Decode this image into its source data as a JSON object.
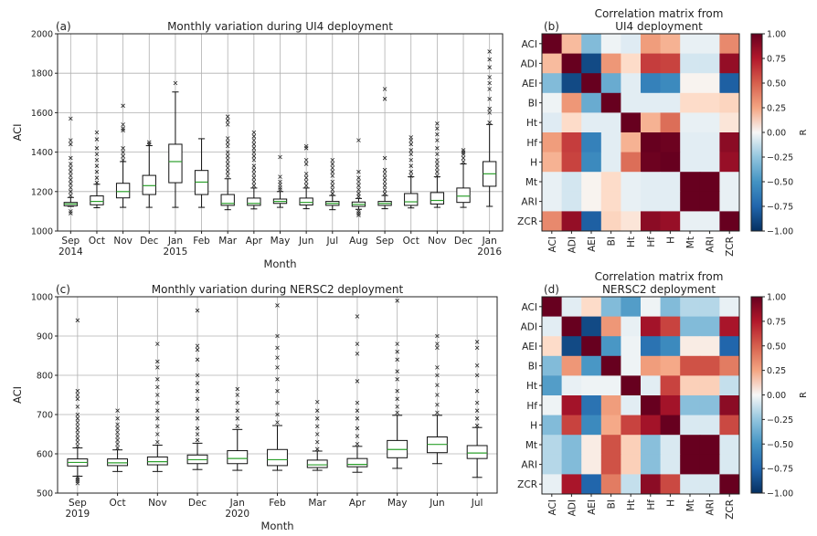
{
  "chart_data": [
    {
      "id": "a",
      "type": "box",
      "panel_label": "(a)",
      "title": "Monthly variation during UI4 deployment",
      "xlabel": "Month",
      "ylabel": "ACI",
      "ylim": [
        1000,
        2000
      ],
      "yticks": [
        1000,
        1200,
        1400,
        1600,
        1800,
        2000
      ],
      "grid": true,
      "categories": [
        "Sep\n2014",
        "Oct",
        "Nov",
        "Dec",
        "Jan\n2015",
        "Feb",
        "Mar",
        "Apr",
        "May",
        "Jun",
        "Jul",
        "Aug",
        "Sep",
        "Oct",
        "Nov",
        "Dec",
        "Jan\n2016"
      ],
      "boxes": [
        {
          "whislo": 1125,
          "q1": 1128,
          "med": 1137,
          "q3": 1145,
          "whishi": 1170,
          "fliers_hi": [
            1180,
            1200,
            1220,
            1240,
            1260,
            1280,
            1300,
            1320,
            1340,
            1370,
            1440,
            1460,
            1570
          ],
          "fliers_lo": [
            1090,
            1100
          ]
        },
        {
          "whislo": 1118,
          "q1": 1133,
          "med": 1150,
          "q3": 1178,
          "whishi": 1237,
          "fliers_hi": [
            1245,
            1270,
            1300,
            1330,
            1360,
            1390,
            1420,
            1465,
            1500
          ],
          "fliers_lo": []
        },
        {
          "whislo": 1120,
          "q1": 1168,
          "med": 1200,
          "q3": 1242,
          "whishi": 1352,
          "fliers_hi": [
            1360,
            1380,
            1400,
            1420,
            1510,
            1520,
            1540,
            1635
          ],
          "fliers_lo": []
        },
        {
          "whislo": 1120,
          "q1": 1185,
          "med": 1230,
          "q3": 1282,
          "whishi": 1433,
          "fliers_hi": [
            1440,
            1450
          ],
          "fliers_lo": []
        },
        {
          "whislo": 1120,
          "q1": 1245,
          "med": 1352,
          "q3": 1440,
          "whishi": 1705,
          "fliers_hi": [
            1750
          ],
          "fliers_lo": []
        },
        {
          "whislo": 1120,
          "q1": 1185,
          "med": 1248,
          "q3": 1307,
          "whishi": 1468,
          "fliers_hi": [],
          "fliers_lo": []
        },
        {
          "whislo": 1108,
          "q1": 1130,
          "med": 1140,
          "q3": 1185,
          "whishi": 1265,
          "fliers_hi": [
            1280,
            1300,
            1320,
            1340,
            1360,
            1380,
            1400,
            1430,
            1450,
            1470,
            1540,
            1560,
            1580
          ],
          "fliers_lo": []
        },
        {
          "whislo": 1112,
          "q1": 1130,
          "med": 1140,
          "q3": 1167,
          "whishi": 1218,
          "fliers_hi": [
            1230,
            1250,
            1270,
            1290,
            1310,
            1330,
            1360,
            1380,
            1400,
            1420,
            1440,
            1460,
            1480,
            1500
          ],
          "fliers_lo": []
        },
        {
          "whislo": 1120,
          "q1": 1140,
          "med": 1150,
          "q3": 1162,
          "whishi": 1200,
          "fliers_hi": [
            1210,
            1220,
            1235,
            1250,
            1275,
            1375
          ],
          "fliers_lo": []
        },
        {
          "whislo": 1113,
          "q1": 1132,
          "med": 1145,
          "q3": 1167,
          "whishi": 1218,
          "fliers_hi": [
            1230,
            1250,
            1270,
            1290,
            1340,
            1360,
            1420,
            1430
          ],
          "fliers_lo": []
        },
        {
          "whislo": 1108,
          "q1": 1130,
          "med": 1140,
          "q3": 1150,
          "whishi": 1180,
          "fliers_hi": [
            1190,
            1210,
            1230,
            1250,
            1280,
            1300,
            1320,
            1340,
            1360
          ],
          "fliers_lo": []
        },
        {
          "whislo": 1110,
          "q1": 1125,
          "med": 1135,
          "q3": 1147,
          "whishi": 1165,
          "fliers_hi": [
            1175,
            1190,
            1210,
            1230,
            1250,
            1270,
            1300,
            1460
          ],
          "fliers_lo": [
            1080,
            1090,
            1100
          ]
        },
        {
          "whislo": 1113,
          "q1": 1130,
          "med": 1140,
          "q3": 1150,
          "whishi": 1180,
          "fliers_hi": [
            1190,
            1210,
            1230,
            1250,
            1270,
            1290,
            1310,
            1370,
            1670,
            1720
          ],
          "fliers_lo": []
        },
        {
          "whislo": 1117,
          "q1": 1130,
          "med": 1148,
          "q3": 1190,
          "whishi": 1275,
          "fliers_hi": [
            1280,
            1300,
            1330,
            1360,
            1390,
            1410,
            1440,
            1460,
            1475
          ],
          "fliers_lo": []
        },
        {
          "whislo": 1120,
          "q1": 1137,
          "med": 1155,
          "q3": 1195,
          "whishi": 1275,
          "fliers_hi": [
            1280,
            1300,
            1320,
            1340,
            1360,
            1390,
            1420,
            1460,
            1490,
            1520,
            1545
          ],
          "fliers_lo": []
        },
        {
          "whislo": 1120,
          "q1": 1145,
          "med": 1177,
          "q3": 1218,
          "whishi": 1340,
          "fliers_hi": [
            1350,
            1370,
            1390,
            1400,
            1410
          ],
          "fliers_lo": []
        },
        {
          "whislo": 1125,
          "q1": 1227,
          "med": 1290,
          "q3": 1352,
          "whishi": 1540,
          "fliers_hi": [
            1550,
            1600,
            1620,
            1670,
            1720,
            1750,
            1780,
            1830,
            1870,
            1910
          ],
          "fliers_lo": []
        }
      ]
    },
    {
      "id": "b",
      "type": "heatmap",
      "panel_label": "(b)",
      "title": "Correlation matrix from\nUI4 deployment",
      "labels": [
        "ACI",
        "ADI",
        "AEI",
        "BI",
        "Ht",
        "Hf",
        "H",
        "Mt",
        "ARI",
        "ZCR"
      ],
      "colorbar_label": "R",
      "colorbar_ticks": [
        "1.00",
        "0.75",
        "0.50",
        "0.25",
        "0.00",
        "−0.25",
        "−0.50",
        "−0.75",
        "−1.00"
      ],
      "vmin": -1,
      "vmax": 1,
      "colormap": "RdBu_r",
      "matrix": [
        [
          1.0,
          0.2,
          -0.3,
          -0.03,
          -0.08,
          0.28,
          0.22,
          -0.05,
          -0.05,
          0.35
        ],
        [
          0.2,
          1.0,
          -0.88,
          0.3,
          0.12,
          0.62,
          0.6,
          -0.12,
          -0.12,
          0.85
        ],
        [
          -0.3,
          -0.88,
          1.0,
          -0.38,
          -0.07,
          -0.6,
          -0.55,
          0.02,
          0.02,
          -0.78
        ],
        [
          -0.03,
          0.3,
          -0.38,
          1.0,
          -0.07,
          -0.07,
          -0.07,
          0.12,
          0.12,
          0.14
        ],
        [
          -0.08,
          0.12,
          -0.07,
          -0.07,
          1.0,
          0.22,
          0.45,
          -0.05,
          -0.05,
          0.08
        ],
        [
          0.28,
          0.62,
          -0.6,
          -0.07,
          0.22,
          1.0,
          0.98,
          -0.07,
          -0.07,
          0.88
        ],
        [
          0.22,
          0.6,
          -0.55,
          -0.07,
          0.45,
          0.98,
          1.0,
          -0.07,
          -0.07,
          0.84
        ],
        [
          -0.05,
          -0.12,
          0.02,
          0.12,
          -0.05,
          -0.07,
          -0.07,
          1.0,
          1.0,
          -0.05
        ],
        [
          -0.05,
          -0.12,
          0.02,
          0.12,
          -0.05,
          -0.07,
          -0.07,
          1.0,
          1.0,
          -0.05
        ],
        [
          0.35,
          0.85,
          -0.78,
          0.14,
          0.08,
          0.88,
          0.84,
          -0.05,
          -0.05,
          1.0
        ]
      ]
    },
    {
      "id": "c",
      "type": "box",
      "panel_label": "(c)",
      "title": "Monthly variation during NERSC2 deployment",
      "xlabel": "Month",
      "ylabel": "ACI",
      "ylim": [
        500,
        1000
      ],
      "yticks": [
        500,
        600,
        700,
        800,
        900,
        1000
      ],
      "grid": true,
      "categories": [
        "Sep\n2019",
        "Oct",
        "Nov",
        "Dec",
        "Jan\n2020",
        "Feb",
        "Mar",
        "Apr",
        "May",
        "Jun",
        "Jul"
      ],
      "boxes": [
        {
          "whislo": 543,
          "q1": 569,
          "med": 578,
          "q3": 587,
          "whishi": 615,
          "fliers_hi": [
            620,
            630,
            640,
            650,
            660,
            670,
            680,
            690,
            700,
            720,
            740,
            750,
            760,
            940
          ],
          "fliers_lo": [
            525,
            530,
            535,
            540
          ]
        },
        {
          "whislo": 555,
          "q1": 570,
          "med": 577,
          "q3": 587,
          "whishi": 610,
          "fliers_hi": [
            615,
            625,
            635,
            645,
            655,
            665,
            675,
            690,
            710
          ],
          "fliers_lo": []
        },
        {
          "whislo": 555,
          "q1": 572,
          "med": 580,
          "q3": 592,
          "whishi": 622,
          "fliers_hi": [
            630,
            650,
            670,
            690,
            710,
            730,
            750,
            770,
            790,
            820,
            835,
            880
          ],
          "fliers_lo": []
        },
        {
          "whislo": 560,
          "q1": 575,
          "med": 585,
          "q3": 597,
          "whishi": 627,
          "fliers_hi": [
            635,
            650,
            665,
            690,
            710,
            740,
            760,
            780,
            800,
            840,
            865,
            875,
            965
          ],
          "fliers_lo": []
        },
        {
          "whislo": 558,
          "q1": 575,
          "med": 588,
          "q3": 608,
          "whishi": 662,
          "fliers_hi": [
            670,
            690,
            710,
            730,
            750,
            765
          ],
          "fliers_lo": []
        },
        {
          "whislo": 558,
          "q1": 570,
          "med": 585,
          "q3": 611,
          "whishi": 672,
          "fliers_hi": [
            680,
            700,
            730,
            760,
            790,
            820,
            845,
            870,
            900,
            978
          ],
          "fliers_lo": []
        },
        {
          "whislo": 558,
          "q1": 565,
          "med": 572,
          "q3": 584,
          "whishi": 607,
          "fliers_hi": [
            612,
            630,
            650,
            670,
            690,
            710,
            732
          ],
          "fliers_lo": []
        },
        {
          "whislo": 553,
          "q1": 567,
          "med": 573,
          "q3": 588,
          "whishi": 619,
          "fliers_hi": [
            625,
            645,
            665,
            690,
            710,
            730,
            785,
            855,
            880,
            950
          ],
          "fliers_lo": []
        },
        {
          "whislo": 563,
          "q1": 590,
          "med": 611,
          "q3": 634,
          "whishi": 698,
          "fliers_hi": [
            705,
            720,
            740,
            760,
            790,
            810,
            840,
            860,
            880,
            990
          ],
          "fliers_lo": []
        },
        {
          "whislo": 575,
          "q1": 603,
          "med": 624,
          "q3": 643,
          "whishi": 698,
          "fliers_hi": [
            705,
            725,
            750,
            775,
            800,
            820,
            870,
            880,
            900
          ],
          "fliers_lo": []
        },
        {
          "whislo": 540,
          "q1": 588,
          "med": 602,
          "q3": 621,
          "whishi": 667,
          "fliers_hi": [
            672,
            690,
            710,
            730,
            760,
            800,
            825,
            870,
            885
          ],
          "fliers_lo": []
        }
      ]
    },
    {
      "id": "d",
      "type": "heatmap",
      "panel_label": "(d)",
      "title": "Correlation matrix from\nNERSC2 deployment",
      "labels": [
        "ACI",
        "ADI",
        "AEI",
        "BI",
        "Ht",
        "Hf",
        "H",
        "Mt",
        "ARI",
        "ZCR"
      ],
      "colorbar_label": "R",
      "colorbar_ticks": [
        "1.00",
        "0.75",
        "0.50",
        "0.25",
        "0.00",
        "−0.25",
        "−0.50",
        "−0.75",
        "−1.00"
      ],
      "vmin": -1,
      "vmax": 1,
      "colormap": "RdBu_r",
      "matrix": [
        [
          1.0,
          -0.07,
          0.12,
          -0.3,
          -0.45,
          -0.03,
          -0.3,
          -0.18,
          -0.18,
          -0.05
        ],
        [
          -0.07,
          1.0,
          -0.88,
          0.3,
          -0.05,
          0.8,
          0.6,
          -0.3,
          -0.3,
          0.78
        ],
        [
          0.12,
          -0.88,
          1.0,
          -0.48,
          -0.03,
          -0.68,
          -0.55,
          0.05,
          0.05,
          -0.75
        ],
        [
          -0.3,
          0.3,
          -0.48,
          1.0,
          -0.03,
          0.28,
          0.24,
          0.55,
          0.55,
          0.4
        ],
        [
          -0.45,
          -0.05,
          -0.03,
          -0.03,
          1.0,
          -0.07,
          0.6,
          0.15,
          0.15,
          -0.15
        ],
        [
          -0.03,
          0.8,
          -0.68,
          0.28,
          -0.07,
          1.0,
          0.8,
          -0.28,
          -0.28,
          0.88
        ],
        [
          -0.3,
          0.6,
          -0.55,
          0.24,
          0.6,
          0.8,
          1.0,
          -0.1,
          -0.1,
          0.58
        ],
        [
          -0.18,
          -0.3,
          0.05,
          0.55,
          0.15,
          -0.28,
          -0.1,
          1.0,
          1.0,
          -0.1
        ],
        [
          -0.18,
          -0.3,
          0.05,
          0.55,
          0.15,
          -0.28,
          -0.1,
          1.0,
          1.0,
          -0.1
        ],
        [
          -0.05,
          0.78,
          -0.75,
          0.4,
          -0.15,
          0.88,
          0.58,
          -0.1,
          -0.1,
          1.0
        ]
      ]
    }
  ]
}
